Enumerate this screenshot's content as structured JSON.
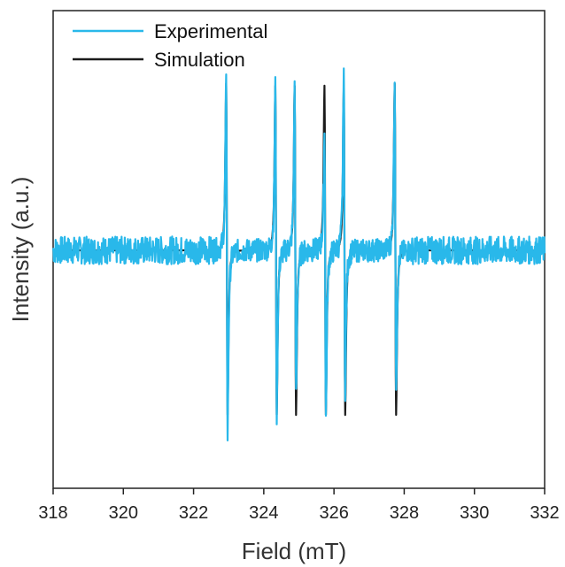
{
  "chart_data": {
    "type": "line",
    "title": "",
    "xlabel": "Field (mT)",
    "ylabel": "Intensity (a.u.)",
    "xlim": [
      318,
      332
    ],
    "ylim": [
      -1,
      1
    ],
    "x_ticks": [
      318,
      320,
      322,
      324,
      326,
      328,
      330,
      332
    ],
    "y_ticks_shown": false,
    "legend_position": "top-left",
    "grid": false,
    "colors": {
      "experimental": "#29b8ea",
      "simulation": "#1a1a1a"
    },
    "series": [
      {
        "name": "Experimental",
        "color": "#29b8ea",
        "line_positions_mT": [
          322.95,
          324.35,
          324.9,
          325.75,
          326.3,
          327.75
        ],
        "pos_peaks": [
          0.72,
          0.71,
          0.71,
          0.5,
          0.79,
          0.74
        ],
        "neg_peaks": [
          -0.8,
          -0.71,
          -0.64,
          -0.73,
          -0.6,
          -0.58
        ],
        "noise_amplitude": 0.05
      },
      {
        "name": "Simulation",
        "color": "#1a1a1a",
        "line_positions_mT": [
          322.95,
          324.35,
          324.9,
          325.75,
          326.3,
          327.75
        ],
        "pos_peaks": [
          0.72,
          0.71,
          0.71,
          0.71,
          0.71,
          0.72
        ],
        "neg_peaks": [
          -0.71,
          -0.71,
          -0.71,
          -0.71,
          -0.71,
          -0.71
        ]
      }
    ]
  }
}
